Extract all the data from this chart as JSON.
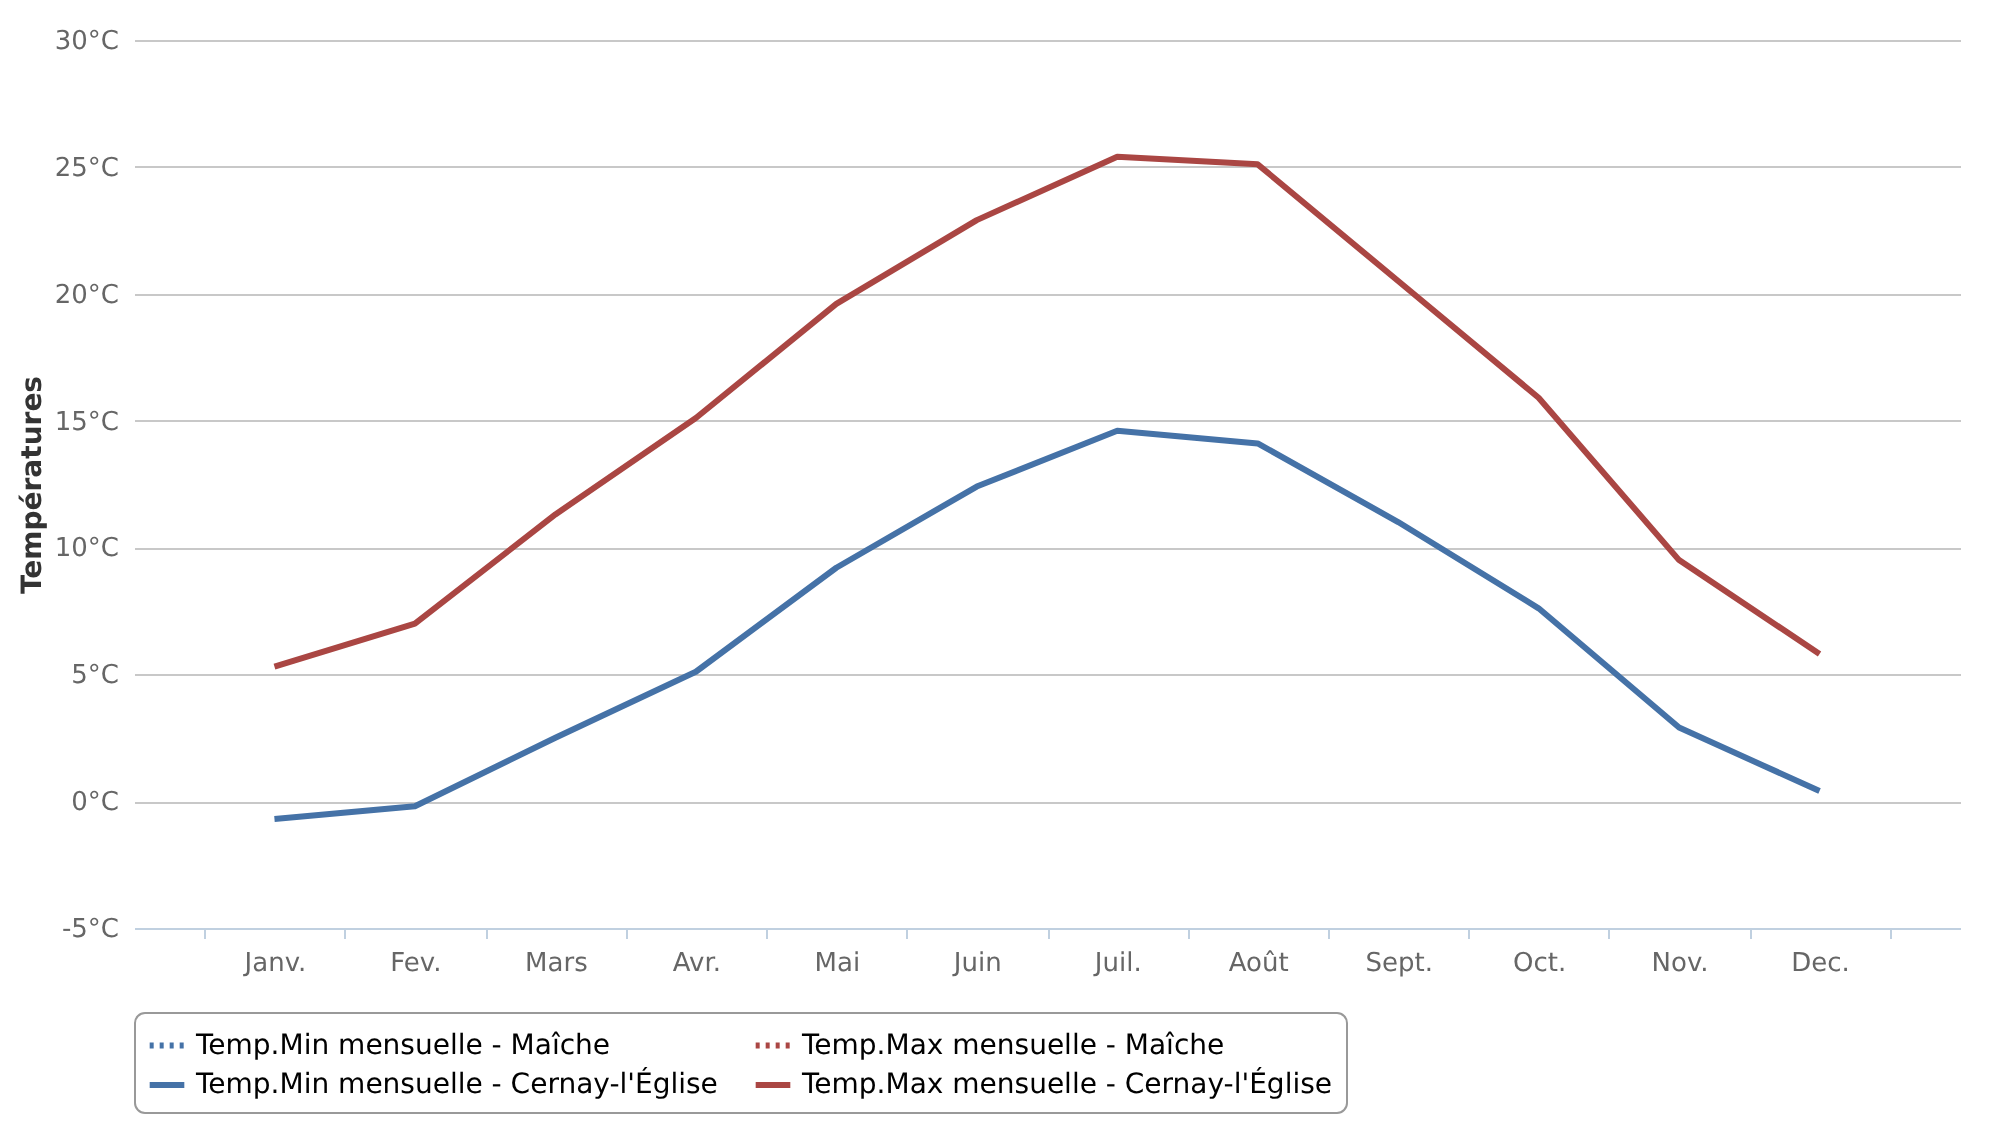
{
  "chart_data": {
    "type": "line",
    "ylabel": "Températures",
    "categories": [
      "Janv.",
      "Fev.",
      "Mars",
      "Avr.",
      "Mai",
      "Juin",
      "Juil.",
      "Août",
      "Sept.",
      "Oct.",
      "Nov.",
      "Dec."
    ],
    "series": [
      {
        "name": "Temp.Min mensuelle - Maîche",
        "color": "#4572a7",
        "line_style": "dotted",
        "values": [
          null,
          null,
          null,
          null,
          null,
          null,
          null,
          null,
          null,
          null,
          null,
          null
        ]
      },
      {
        "name": "Temp.Max mensuelle - Maîche",
        "color": "#aa4643",
        "line_style": "dotted",
        "values": [
          null,
          null,
          null,
          null,
          null,
          null,
          null,
          null,
          null,
          null,
          null,
          null
        ]
      },
      {
        "name": "Temp.Min mensuelle - Cernay-l'Église",
        "color": "#4572a7",
        "line_style": "solid",
        "values": [
          -0.7,
          -0.2,
          2.5,
          5.1,
          9.2,
          12.4,
          14.6,
          14.1,
          11,
          7.6,
          2.9,
          0.4
        ]
      },
      {
        "name": "Temp.Max mensuelle - Cernay-l'Église",
        "color": "#aa4643",
        "line_style": "solid",
        "values": [
          5.3,
          7,
          11.3,
          15.1,
          19.6,
          22.9,
          25.4,
          25.1,
          20.5,
          15.9,
          9.5,
          5.8
        ]
      }
    ],
    "ylim": [
      -5,
      30
    ],
    "yticks": [
      {
        "value": -5,
        "label": "-5°C"
      },
      {
        "value": 0,
        "label": "0°C"
      },
      {
        "value": 5,
        "label": "5°C"
      },
      {
        "value": 10,
        "label": "10°C"
      },
      {
        "value": 15,
        "label": "15°C"
      },
      {
        "value": 20,
        "label": "20°C"
      },
      {
        "value": 25,
        "label": "25°C"
      },
      {
        "value": 30,
        "label": "30°C"
      }
    ],
    "grid": "y",
    "legend": "bottom",
    "marker": "none"
  }
}
